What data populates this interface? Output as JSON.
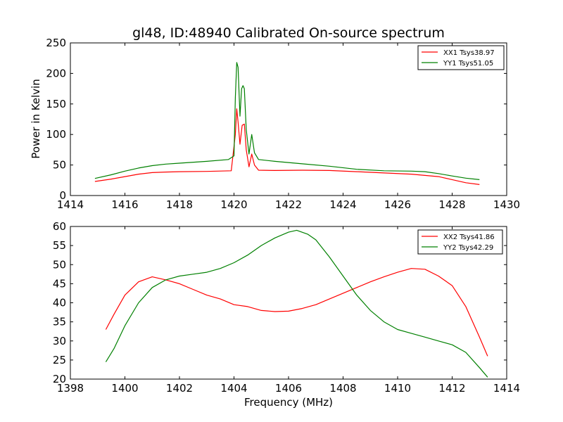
{
  "chart_data": [
    {
      "type": "line",
      "title": "gl48, ID:48940 Calibrated On-source spectrum",
      "xlabel": "",
      "ylabel": "Power in Kelvin",
      "xlim": [
        1414,
        1430
      ],
      "ylim": [
        0,
        250
      ],
      "xticks": [
        1414,
        1416,
        1418,
        1420,
        1422,
        1424,
        1426,
        1428,
        1430
      ],
      "yticks": [
        0,
        50,
        100,
        150,
        200,
        250
      ],
      "grid": false,
      "legend_position": "top-right",
      "series": [
        {
          "name": "XX1 Tsys38.97",
          "color": "#ff0000",
          "points": [
            [
              1414.9,
              23
            ],
            [
              1415.5,
              27
            ],
            [
              1416,
              31
            ],
            [
              1416.5,
              35
            ],
            [
              1417,
              37.5
            ],
            [
              1417.5,
              38.5
            ],
            [
              1418,
              39
            ],
            [
              1419,
              39.5
            ],
            [
              1419.9,
              40.5
            ],
            [
              1420.05,
              100
            ],
            [
              1420.1,
              142
            ],
            [
              1420.15,
              120
            ],
            [
              1420.22,
              84
            ],
            [
              1420.3,
              115
            ],
            [
              1420.38,
              117
            ],
            [
              1420.45,
              75
            ],
            [
              1420.55,
              47
            ],
            [
              1420.65,
              68
            ],
            [
              1420.75,
              50
            ],
            [
              1420.9,
              41.5
            ],
            [
              1421.5,
              41
            ],
            [
              1422.5,
              41.5
            ],
            [
              1423.5,
              41
            ],
            [
              1424.5,
              39
            ],
            [
              1425.5,
              37
            ],
            [
              1426.5,
              35
            ],
            [
              1427.5,
              31
            ],
            [
              1428,
              26
            ],
            [
              1428.5,
              21
            ],
            [
              1429,
              18
            ]
          ]
        },
        {
          "name": "YY1 Tsys51.05",
          "color": "#008000",
          "points": [
            [
              1414.9,
              28
            ],
            [
              1415.5,
              34
            ],
            [
              1416,
              40
            ],
            [
              1416.5,
              45
            ],
            [
              1417,
              49
            ],
            [
              1417.5,
              51.5
            ],
            [
              1418,
              53
            ],
            [
              1419,
              56
            ],
            [
              1419.8,
              59
            ],
            [
              1420,
              65
            ],
            [
              1420.05,
              160
            ],
            [
              1420.1,
              218
            ],
            [
              1420.15,
              210
            ],
            [
              1420.22,
              130
            ],
            [
              1420.28,
              175
            ],
            [
              1420.33,
              180
            ],
            [
              1420.38,
              175
            ],
            [
              1420.45,
              108
            ],
            [
              1420.55,
              68
            ],
            [
              1420.65,
              100
            ],
            [
              1420.75,
              70
            ],
            [
              1420.9,
              59
            ],
            [
              1421.5,
              56
            ],
            [
              1422.5,
              52
            ],
            [
              1423.5,
              48
            ],
            [
              1424.5,
              43
            ],
            [
              1425.5,
              40.5
            ],
            [
              1426.5,
              40
            ],
            [
              1427,
              39
            ],
            [
              1427.5,
              36
            ],
            [
              1428,
              32
            ],
            [
              1428.5,
              28.5
            ],
            [
              1429,
              26
            ]
          ]
        }
      ]
    },
    {
      "type": "line",
      "title": "",
      "xlabel": "Frequency (MHz)",
      "ylabel": "",
      "xlim": [
        1398,
        1414
      ],
      "ylim": [
        20,
        60
      ],
      "xticks": [
        1398,
        1400,
        1402,
        1404,
        1406,
        1408,
        1410,
        1412,
        1414
      ],
      "yticks": [
        20,
        25,
        30,
        35,
        40,
        45,
        50,
        55,
        60
      ],
      "grid": false,
      "legend_position": "top-right",
      "series": [
        {
          "name": "XX2 Tsys41.86",
          "color": "#ff0000",
          "points": [
            [
              1399.3,
              33
            ],
            [
              1399.6,
              37
            ],
            [
              1400,
              42
            ],
            [
              1400.5,
              45.5
            ],
            [
              1401,
              46.8
            ],
            [
              1401.5,
              46
            ],
            [
              1402,
              45
            ],
            [
              1402.5,
              43.5
            ],
            [
              1403,
              42
            ],
            [
              1403.5,
              41
            ],
            [
              1404,
              39.5
            ],
            [
              1404.5,
              39
            ],
            [
              1405,
              38
            ],
            [
              1405.5,
              37.7
            ],
            [
              1406,
              37.8
            ],
            [
              1406.5,
              38.5
            ],
            [
              1407,
              39.5
            ],
            [
              1407.5,
              41
            ],
            [
              1408,
              42.5
            ],
            [
              1408.5,
              44
            ],
            [
              1409,
              45.5
            ],
            [
              1409.5,
              46.8
            ],
            [
              1410,
              48
            ],
            [
              1410.5,
              49
            ],
            [
              1411,
              48.8
            ],
            [
              1411.5,
              47
            ],
            [
              1412,
              44.5
            ],
            [
              1412.5,
              39
            ],
            [
              1413,
              31
            ],
            [
              1413.3,
              26
            ]
          ]
        },
        {
          "name": "YY2 Tsys42.29",
          "color": "#008000",
          "points": [
            [
              1399.3,
              24.5
            ],
            [
              1399.6,
              28
            ],
            [
              1400,
              34
            ],
            [
              1400.5,
              40
            ],
            [
              1401,
              44
            ],
            [
              1401.5,
              46
            ],
            [
              1402,
              47
            ],
            [
              1402.5,
              47.5
            ],
            [
              1403,
              48
            ],
            [
              1403.5,
              49
            ],
            [
              1404,
              50.5
            ],
            [
              1404.5,
              52.5
            ],
            [
              1405,
              55
            ],
            [
              1405.5,
              57
            ],
            [
              1406,
              58.5
            ],
            [
              1406.3,
              59
            ],
            [
              1406.7,
              58
            ],
            [
              1407,
              56.5
            ],
            [
              1407.5,
              52
            ],
            [
              1408,
              47
            ],
            [
              1408.5,
              42
            ],
            [
              1409,
              38
            ],
            [
              1409.5,
              35
            ],
            [
              1410,
              33
            ],
            [
              1410.5,
              32
            ],
            [
              1411,
              31
            ],
            [
              1411.5,
              30
            ],
            [
              1412,
              29
            ],
            [
              1412.5,
              27
            ],
            [
              1413,
              23
            ],
            [
              1413.3,
              20.5
            ]
          ]
        }
      ]
    }
  ]
}
